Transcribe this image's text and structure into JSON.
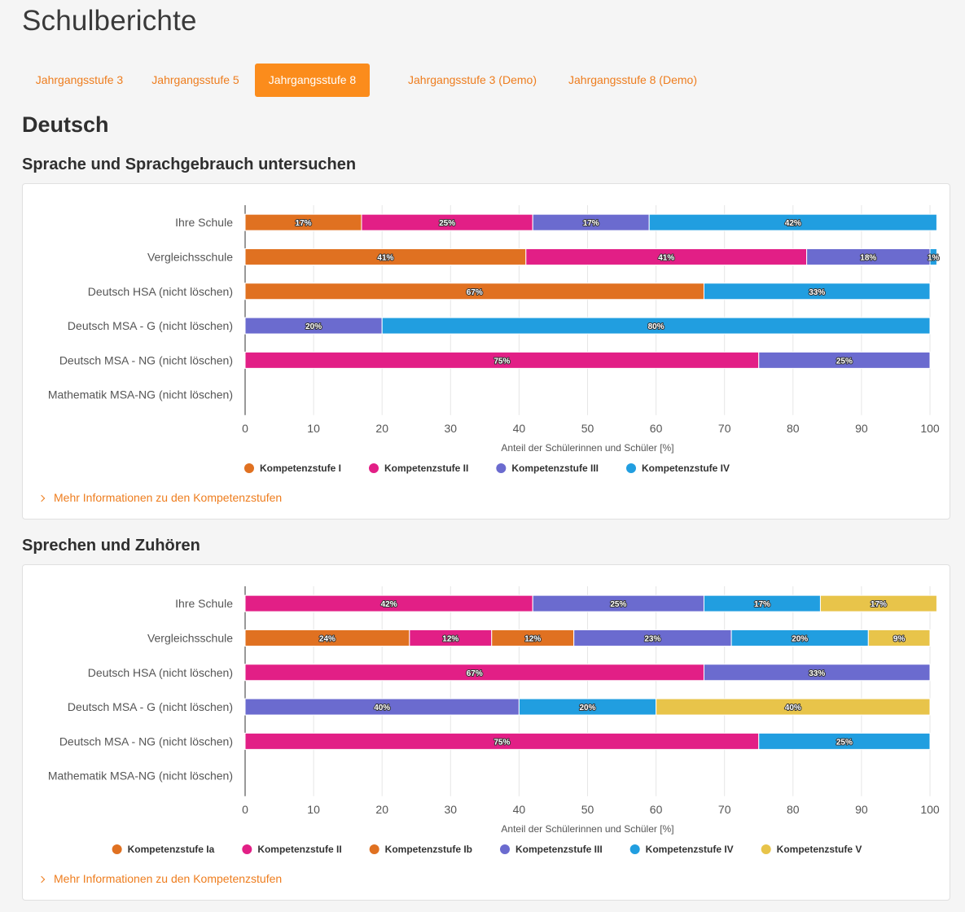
{
  "page": {
    "title": "Schulberichte"
  },
  "tabs": [
    {
      "label": "Jahrgangsstufe 3",
      "active": false
    },
    {
      "label": "Jahrgangsstufe 5",
      "active": false
    },
    {
      "label": "Jahrgangsstufe 8",
      "active": true
    },
    {
      "label": "Jahrgangsstufe 3 (Demo)",
      "active": false
    },
    {
      "label": "Jahrgangsstufe 8 (Demo)",
      "active": false
    }
  ],
  "subject": {
    "title": "Deutsch"
  },
  "more_info_label": "Mehr Informationen zu den Kompetenzstufen",
  "colors": {
    "orange": "#e07121",
    "pink": "#e21f86",
    "purple": "#6b6bcf",
    "blue": "#219ee0",
    "yellow": "#e8c44a",
    "accent": "#fb8c1c"
  },
  "sections": [
    {
      "title": "Sprache und Sprachgebrauch untersuchen"
    },
    {
      "title": "Sprechen und Zuhören"
    }
  ],
  "chart_data": [
    {
      "type": "bar",
      "orientation": "horizontal",
      "stacked": true,
      "xlabel": "Anteil der Schülerinnen und Schüler [%]",
      "xlim": [
        0,
        100
      ],
      "xticks": [
        0,
        10,
        20,
        30,
        40,
        50,
        60,
        70,
        80,
        90,
        100
      ],
      "grid": true,
      "legend_position": "bottom",
      "categories": [
        "Ihre Schule",
        "Vergleichsschule",
        "Deutsch HSA (nicht löschen)",
        "Deutsch MSA - G (nicht löschen)",
        "Deutsch MSA - NG (nicht löschen)",
        "Mathematik MSA-NG (nicht löschen)"
      ],
      "series": [
        {
          "name": "Kompetenzstufe I",
          "color": "#e07121",
          "values": [
            17,
            41,
            67,
            0,
            0,
            0
          ],
          "labels": [
            "17%",
            "41%",
            "67%",
            "",
            "",
            ""
          ]
        },
        {
          "name": "Kompetenzstufe II",
          "color": "#e21f86",
          "values": [
            25,
            41,
            0,
            0,
            75,
            0
          ],
          "labels": [
            "25%",
            "41%",
            "",
            "",
            "75%",
            ""
          ]
        },
        {
          "name": "Kompetenzstufe III",
          "color": "#6b6bcf",
          "values": [
            17,
            18,
            0,
            20,
            25,
            0
          ],
          "labels": [
            "17%",
            "18%",
            "",
            "20%",
            "25%",
            ""
          ]
        },
        {
          "name": "Kompetenzstufe IV",
          "color": "#219ee0",
          "values": [
            42,
            1,
            33,
            80,
            0,
            0
          ],
          "labels": [
            "42%",
            "1%",
            "33%",
            "80%",
            "",
            ""
          ]
        }
      ]
    },
    {
      "type": "bar",
      "orientation": "horizontal",
      "stacked": true,
      "xlabel": "Anteil der Schülerinnen und Schüler [%]",
      "xlim": [
        0,
        100
      ],
      "xticks": [
        0,
        10,
        20,
        30,
        40,
        50,
        60,
        70,
        80,
        90,
        100
      ],
      "grid": true,
      "legend_position": "bottom",
      "categories": [
        "Ihre Schule",
        "Vergleichsschule",
        "Deutsch HSA (nicht löschen)",
        "Deutsch MSA - G (nicht löschen)",
        "Deutsch MSA - NG (nicht löschen)",
        "Mathematik MSA-NG (nicht löschen)"
      ],
      "series": [
        {
          "name": "Kompetenzstufe Ia",
          "color": "#e07121",
          "values": [
            0,
            24,
            0,
            0,
            0,
            0
          ],
          "labels": [
            "",
            "24%",
            "",
            "",
            "",
            ""
          ]
        },
        {
          "name": "Kompetenzstufe II",
          "color": "#e21f86",
          "values": [
            42,
            12,
            67,
            0,
            75,
            0
          ],
          "labels": [
            "42%",
            "12%",
            "67%",
            "",
            "75%",
            ""
          ]
        },
        {
          "name": "Kompetenzstufe Ib",
          "color": "#e07121",
          "values": [
            0,
            12,
            0,
            0,
            0,
            0
          ],
          "labels": [
            "",
            "12%",
            "",
            "",
            "",
            ""
          ]
        },
        {
          "name": "Kompetenzstufe III",
          "color": "#6b6bcf",
          "values": [
            25,
            23,
            33,
            40,
            0,
            0
          ],
          "labels": [
            "25%",
            "23%",
            "33%",
            "40%",
            "",
            ""
          ]
        },
        {
          "name": "Kompetenzstufe IV",
          "color": "#219ee0",
          "values": [
            17,
            20,
            0,
            20,
            25,
            0
          ],
          "labels": [
            "17%",
            "20%",
            "",
            "20%",
            "25%",
            ""
          ]
        },
        {
          "name": "Kompetenzstufe V",
          "color": "#e8c44a",
          "values": [
            17,
            9,
            0,
            40,
            0,
            0
          ],
          "labels": [
            "17%",
            "9%",
            "",
            "40%",
            "",
            ""
          ]
        }
      ]
    }
  ]
}
